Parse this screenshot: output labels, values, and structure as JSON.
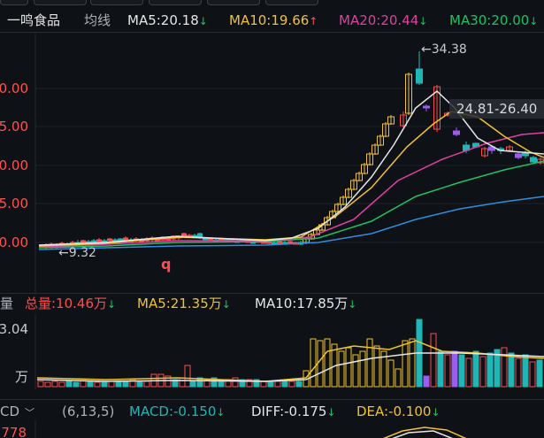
{
  "stock": {
    "name": "一鸣食品",
    "mode_label": "均线"
  },
  "ma_legend": [
    {
      "label": "MA5:20.18",
      "color": "#e6e6e6",
      "trend": "down"
    },
    {
      "label": "MA10:19.66",
      "color": "#f1c232",
      "trend": "up"
    },
    {
      "label": "MA20:20.44",
      "color": "#e040a0",
      "trend": "down"
    },
    {
      "label": "MA30:20.00",
      "color": "#21c065",
      "trend": "down"
    }
  ],
  "volume_legend": {
    "panel_label": "量",
    "total_label": "总量:10.46万",
    "ma5_label": "MA5:21.35万",
    "ma10_label": "MA10:17.85万"
  },
  "macd_legend": {
    "indicator": "CD",
    "params": "(6,13,5)",
    "macd_label": "MACD:-0.150",
    "diff_label": "DIFF:-0.175",
    "dea_label": "DEA:-0.100"
  },
  "colors": {
    "up": "#ff4d4d",
    "up_limit": "#f1c232",
    "down": "#1fb6b6",
    "down_alt": "#9b5cf0",
    "ma5": "#e6e6e6",
    "ma10": "#f1c232",
    "ma20": "#e040a0",
    "ma30": "#21c065",
    "ma60": "#2f8ee0",
    "legend_up_arrow": "#ff4d4d",
    "legend_down_arrow": "#21c065"
  },
  "chart_data": {
    "type": "candlestick",
    "y_axis_ticks": [
      "0.00",
      "5.00",
      "0.00",
      "5.00",
      "0.00"
    ],
    "annotations": {
      "high_label": "←34.38",
      "low_label": "←9.32",
      "range_label": "24.81-26.40",
      "marker_label": "q"
    },
    "volume_axis": {
      "top_label": "3.04",
      "unit_label": "万"
    },
    "macd_axis": {
      "top_label": "778"
    }
  }
}
